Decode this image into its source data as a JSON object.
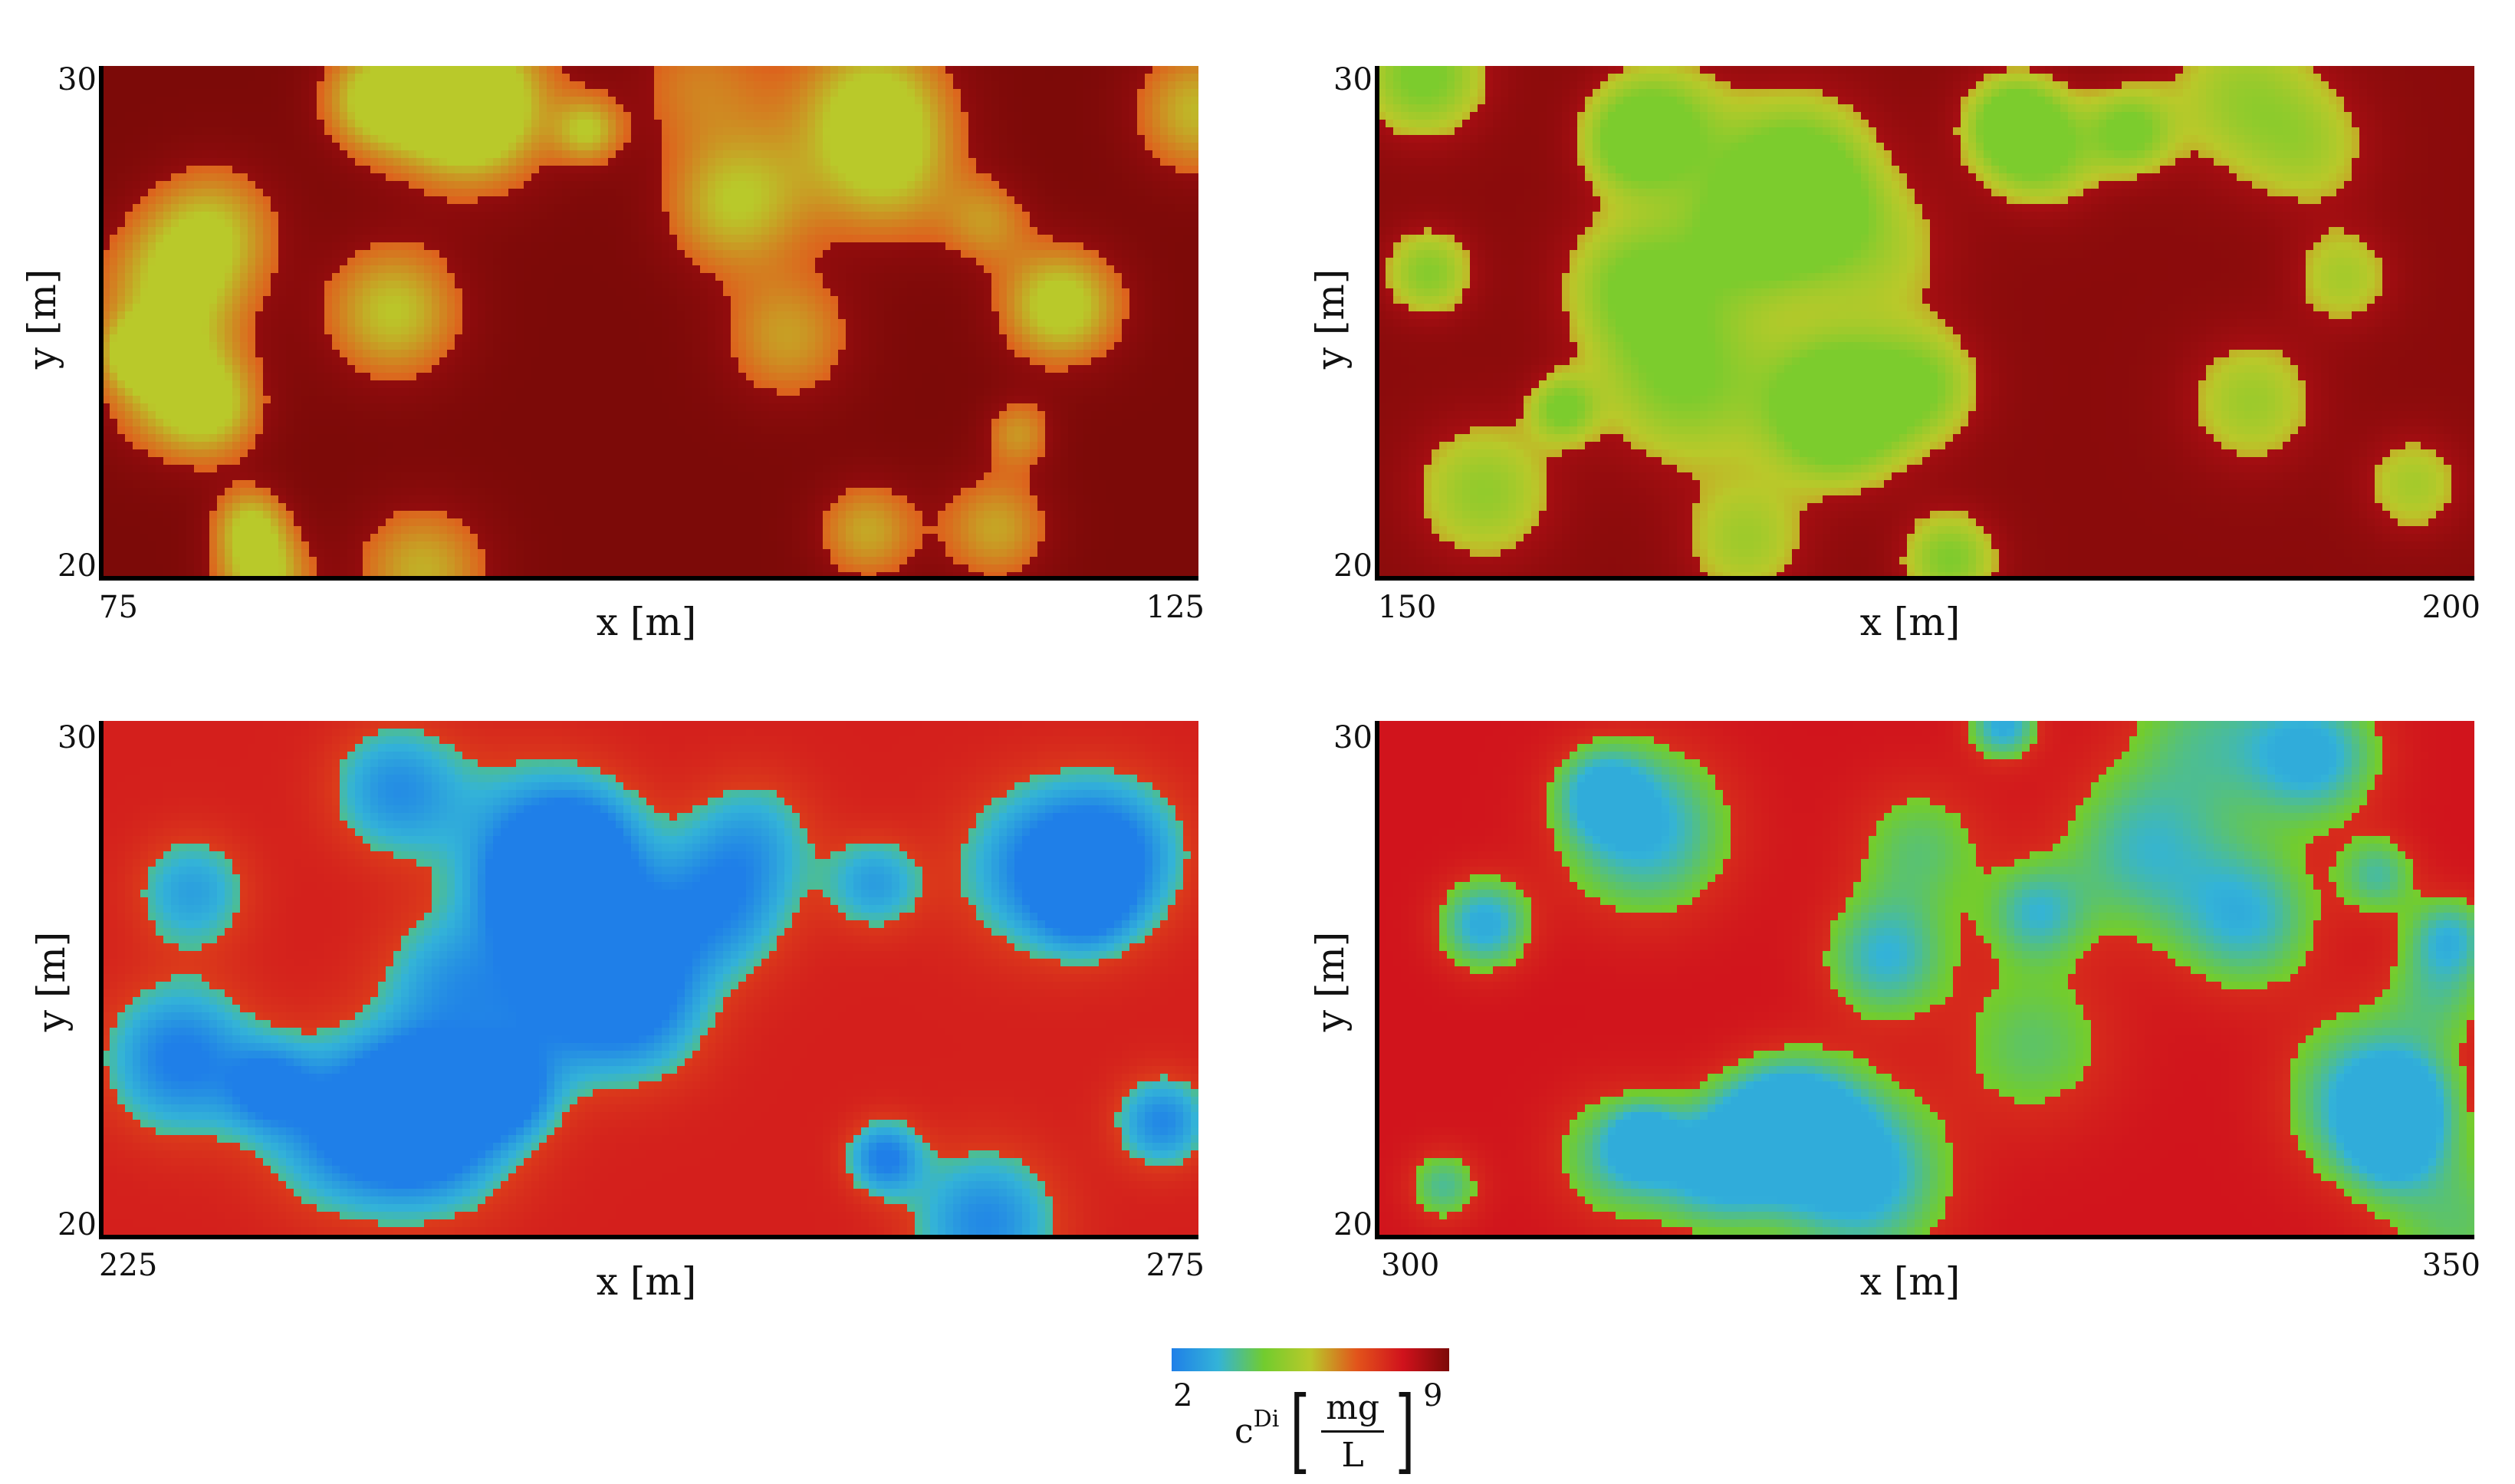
{
  "chart_data": [
    {
      "type": "heatmap",
      "title": "",
      "xlabel": "x [m]",
      "ylabel": "y [m]",
      "xlim": [
        75,
        125
      ],
      "ylim": [
        20,
        30
      ],
      "xticks": [
        "75",
        "125"
      ],
      "yticks": [
        "20",
        "30"
      ],
      "values_range_mg_per_L": [
        5.5,
        9
      ],
      "dominant_value": 9,
      "colormap_segment": "green-yellow on dark red"
    },
    {
      "type": "heatmap",
      "title": "",
      "xlabel": "x [m]",
      "ylabel": "y [m]",
      "xlim": [
        150,
        200
      ],
      "ylim": [
        20,
        30
      ],
      "xticks": [
        "150",
        "200"
      ],
      "yticks": [
        "20",
        "30"
      ],
      "values_range_mg_per_L": [
        4.5,
        9
      ],
      "dominant_value": 8.8,
      "colormap_segment": "green on crimson/dark red"
    },
    {
      "type": "heatmap",
      "title": "",
      "xlabel": "x [m]",
      "ylabel": "y [m]",
      "xlim": [
        225,
        275
      ],
      "ylim": [
        20,
        30
      ],
      "xticks": [
        "225",
        "275"
      ],
      "yticks": [
        "20",
        "30"
      ],
      "values_range_mg_per_L": [
        2,
        8
      ],
      "dominant_value": 7.6,
      "colormap_segment": "blue on red-orange"
    },
    {
      "type": "heatmap",
      "title": "",
      "xlabel": "x [m]",
      "ylabel": "y [m]",
      "xlim": [
        300,
        350
      ],
      "ylim": [
        20,
        30
      ],
      "xticks": [
        "300",
        "350"
      ],
      "yticks": [
        "20",
        "30"
      ],
      "values_range_mg_per_L": [
        3,
        8
      ],
      "dominant_value": 7.8,
      "colormap_segment": "cyan spots on orange-red"
    }
  ],
  "colorbar": {
    "min_label": "2",
    "max_label": "9",
    "min": 2,
    "max": 9,
    "label_symbol": "c",
    "label_superscript": "Di",
    "unit_numerator": "mg",
    "unit_denominator": "L",
    "colors": [
      "#1f7fe8",
      "#33b3d8",
      "#72cc2e",
      "#b9c92a",
      "#e2541b",
      "#d0121c",
      "#7c0a08"
    ]
  }
}
